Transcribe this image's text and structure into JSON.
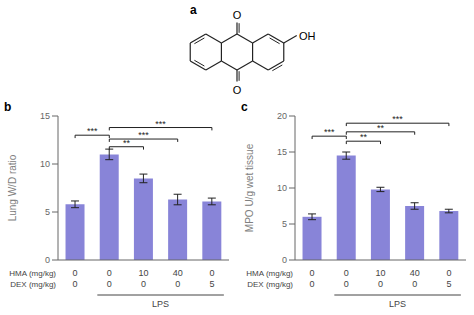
{
  "chart_data": [
    {
      "type": "structure",
      "title": "a",
      "annotations": [
        "O",
        "O",
        "OH"
      ]
    },
    {
      "type": "bar",
      "title": "b",
      "ylabel": "Lung W/D ratio",
      "values": [
        5.8,
        11.0,
        8.5,
        6.3,
        6.1
      ],
      "errors": [
        0.35,
        0.55,
        0.45,
        0.55,
        0.35
      ],
      "ylim": [
        0,
        15
      ],
      "yticks": [
        0,
        5,
        10,
        15
      ],
      "color": "#8884d8",
      "category_rows": [
        {
          "name": "HMA (mg/kg)",
          "labels": [
            "0",
            "0",
            "10",
            "40",
            "0"
          ]
        },
        {
          "name": "DEX (mg/kg)",
          "labels": [
            "0",
            "0",
            "0",
            "0",
            "5"
          ]
        }
      ],
      "annotations": [
        {
          "text": "LPS",
          "from": 1,
          "to": 4
        }
      ],
      "significance": [
        {
          "from": 0,
          "to": 1,
          "y": 13.0,
          "label": "***"
        },
        {
          "from": 1,
          "to": 2,
          "y": 11.8,
          "label": "**"
        },
        {
          "from": 1,
          "to": 3,
          "y": 12.6,
          "label": "***"
        },
        {
          "from": 1,
          "to": 4,
          "y": 13.8,
          "label": "***"
        }
      ]
    },
    {
      "type": "bar",
      "title": "c",
      "ylabel": "MPO U/g wet tissue",
      "values": [
        6.0,
        14.5,
        9.8,
        7.5,
        6.8
      ],
      "errors": [
        0.4,
        0.5,
        0.3,
        0.45,
        0.25
      ],
      "ylim": [
        0,
        20
      ],
      "yticks": [
        0,
        5,
        10,
        15,
        20
      ],
      "color": "#8884d8",
      "category_rows": [
        {
          "name": "HMA (mg/kg)",
          "labels": [
            "0",
            "0",
            "10",
            "40",
            "0"
          ]
        },
        {
          "name": "DEX (mg/kg)",
          "labels": [
            "0",
            "0",
            "0",
            "0",
            "5"
          ]
        }
      ],
      "annotations": [
        {
          "text": "LPS",
          "from": 1,
          "to": 4
        }
      ],
      "significance": [
        {
          "from": 0,
          "to": 1,
          "y": 17.2,
          "label": "***"
        },
        {
          "from": 1,
          "to": 2,
          "y": 16.5,
          "label": "**"
        },
        {
          "from": 1,
          "to": 3,
          "y": 17.8,
          "label": "**"
        },
        {
          "from": 1,
          "to": 4,
          "y": 19.0,
          "label": "***"
        }
      ]
    }
  ]
}
